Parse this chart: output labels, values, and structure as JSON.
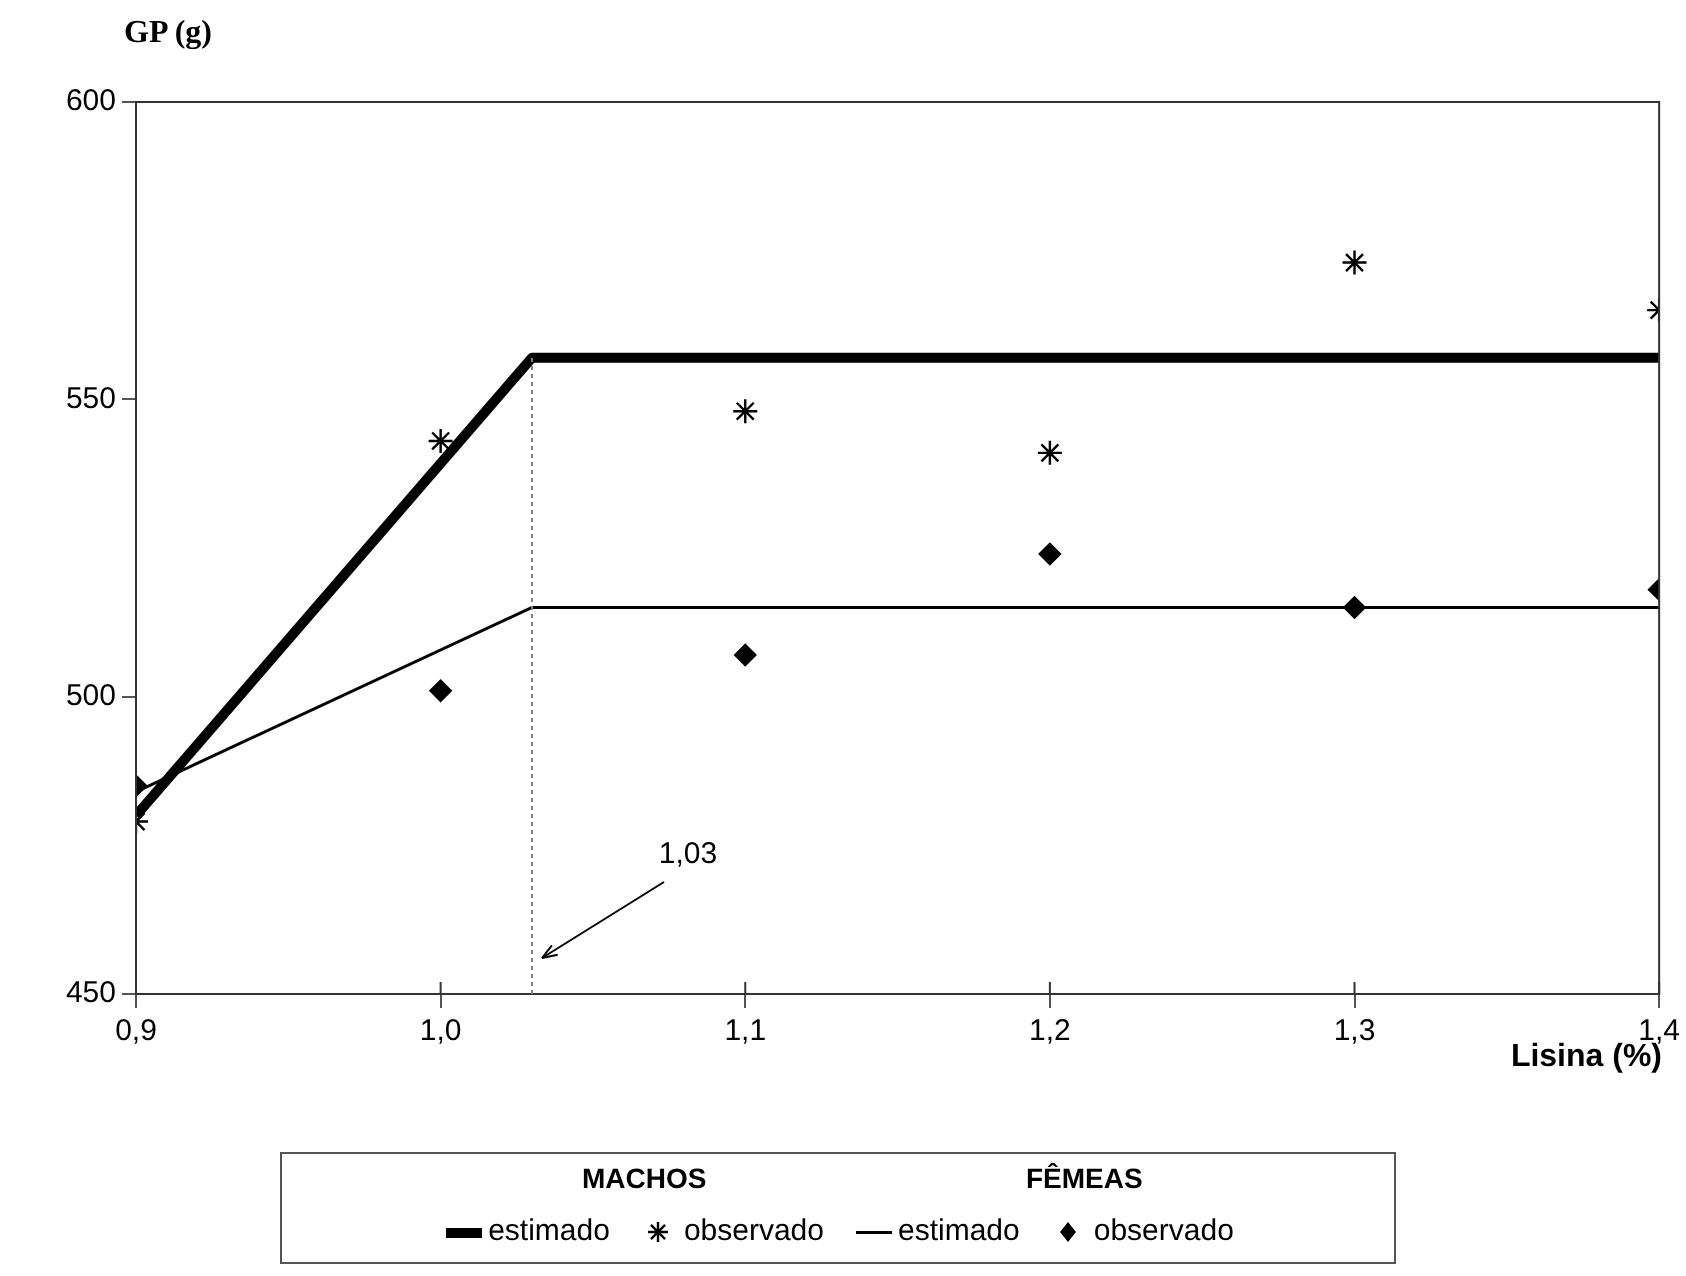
{
  "chart_data": {
    "type": "line",
    "xlabel": "Lisina (%)",
    "ylabel": "GP (g)",
    "xlim": [
      0.9,
      1.4
    ],
    "xticks": [
      {
        "value": 0.9,
        "label": "0,9"
      },
      {
        "value": 1.0,
        "label": "1,0"
      },
      {
        "value": 1.1,
        "label": "1,1"
      },
      {
        "value": 1.2,
        "label": "1,2"
      },
      {
        "value": 1.3,
        "label": "1,3"
      },
      {
        "value": 1.4,
        "label": "1,4"
      }
    ],
    "ylim": [
      450,
      600
    ],
    "yticks": [
      450,
      500,
      550,
      600
    ],
    "legend": "bottom",
    "annotations": [
      "MACHOS",
      "FÊMEAS"
    ],
    "ref_lines": [
      {
        "axis": "x",
        "value": 1.03,
        "label": "1,03",
        "line_style": "dotted",
        "color": "#808080"
      }
    ],
    "series": [
      {
        "name": "estimado",
        "marker": "none",
        "color": "#000000",
        "x": [
          0.9,
          1.03,
          1.4
        ],
        "values": [
          480,
          557,
          557
        ]
      },
      {
        "name": "observado",
        "type": "scatter",
        "marker": "cross",
        "color": "#000000",
        "x": [
          0.9,
          1.0,
          1.1,
          1.2,
          1.3,
          1.4
        ],
        "values": [
          479,
          543,
          548,
          541,
          573,
          565
        ]
      },
      {
        "name": "estimado",
        "marker": "none",
        "color": "#000000",
        "x": [
          0.9,
          1.03,
          1.4
        ],
        "values": [
          484,
          515,
          515
        ]
      },
      {
        "name": "observado",
        "type": "scatter",
        "marker": "diamond",
        "color": "#000000",
        "x": [
          0.9,
          1.0,
          1.1,
          1.2,
          1.3,
          1.4
        ],
        "values": [
          485,
          501,
          507,
          524,
          515,
          518
        ]
      }
    ]
  }
}
